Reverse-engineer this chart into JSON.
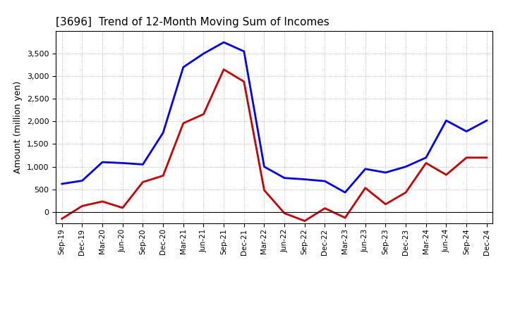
{
  "title": "[3696]  Trend of 12-Month Moving Sum of Incomes",
  "ylabel": "Amount (million yen)",
  "x_labels": [
    "Sep-19",
    "Dec-19",
    "Mar-20",
    "Jun-20",
    "Sep-20",
    "Dec-20",
    "Mar-21",
    "Jun-21",
    "Sep-21",
    "Dec-21",
    "Mar-22",
    "Jun-22",
    "Sep-22",
    "Dec-22",
    "Mar-23",
    "Jun-23",
    "Sep-23",
    "Dec-23",
    "Mar-24",
    "Jun-24",
    "Sep-24",
    "Dec-24"
  ],
  "ordinary_income": [
    620,
    690,
    1100,
    1080,
    1050,
    1750,
    3200,
    3500,
    3750,
    3550,
    1000,
    750,
    720,
    680,
    430,
    950,
    870,
    1000,
    1200,
    2020,
    1780,
    2020
  ],
  "net_income": [
    -150,
    130,
    230,
    90,
    660,
    800,
    1960,
    2160,
    3150,
    2880,
    480,
    -30,
    -200,
    80,
    -130,
    530,
    170,
    430,
    1080,
    820,
    1200,
    1200
  ],
  "ordinary_color": "#0000ff",
  "net_color": "#cc0000",
  "background_color": "#ffffff",
  "grid_color": "#aaaaaa",
  "ylim_min": -250,
  "ylim_max": 4000,
  "yticks": [
    0,
    500,
    1000,
    1500,
    2000,
    2500,
    3000,
    3500
  ],
  "line_width": 2.0
}
